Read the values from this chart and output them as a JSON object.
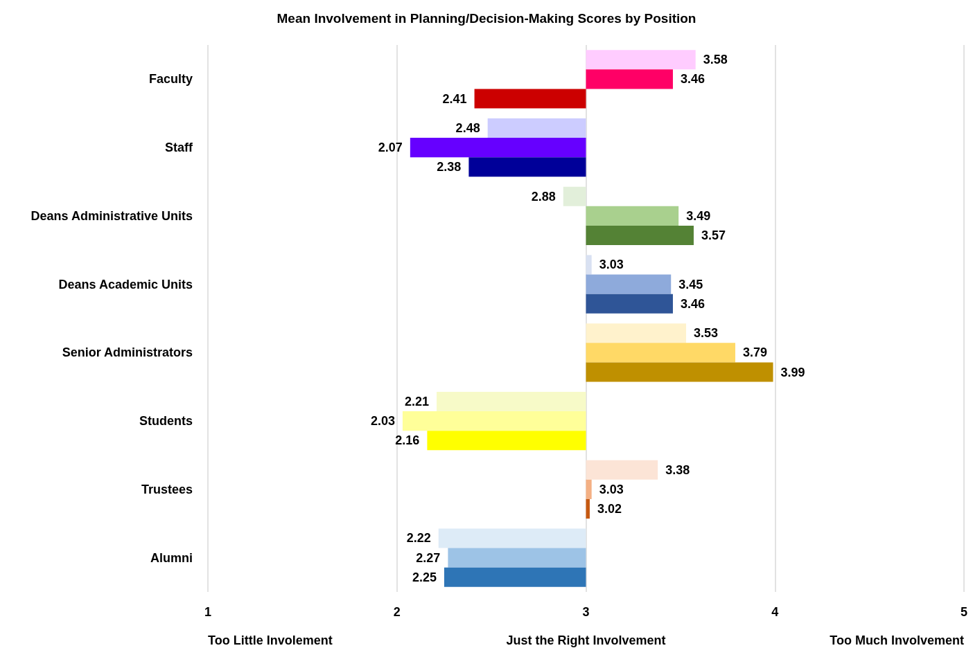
{
  "chart_data": {
    "type": "bar",
    "orientation": "horizontal",
    "title": "Mean Involvement in Planning/Decision-Making Scores by Position",
    "categories": [
      "Faculty",
      "Staff",
      "Deans Administrative Units",
      "Deans Academic Units",
      "Senior Administrators",
      "Students",
      "Trustees",
      "Alumni"
    ],
    "series": [
      {
        "values": [
          0.58,
          -0.52,
          -0.12,
          0.03,
          0.53,
          -0.79,
          0.38,
          -0.78
        ],
        "base": [
          3,
          3,
          3,
          3,
          3,
          3,
          3,
          3
        ],
        "colors": [
          "#ffccff",
          "#ccccff",
          "#e2efda",
          "#d9e1f2",
          "#fff2cc",
          "#f7fac8",
          "#fce4d6",
          "#ddebf7"
        ],
        "value_labels": [
          "3.58",
          "2.48",
          "2.88",
          "3.03",
          "3.53",
          "2.21",
          "3.38",
          "2.22"
        ]
      },
      {
        "values": [
          0.46,
          -0.93,
          0.49,
          0.45,
          0.79,
          -0.97,
          0.03,
          -0.73
        ],
        "base": [
          3,
          3,
          3,
          3,
          3,
          3,
          3,
          3
        ],
        "colors": [
          "#ff0066",
          "#6600ff",
          "#a9d08e",
          "#8eaadb",
          "#ffd966",
          "#ffff99",
          "#f4b084",
          "#9dc3e6"
        ],
        "value_labels": [
          "3.46",
          "2.07",
          "3.49",
          "3.45",
          "3.79",
          "2.03",
          "3.03",
          "2.27"
        ]
      },
      {
        "values": [
          -0.59,
          -0.62,
          0.57,
          0.46,
          0.99,
          -0.84,
          0.02,
          -0.75
        ],
        "base": [
          3,
          3,
          3,
          3,
          3,
          3,
          3,
          3
        ],
        "colors": [
          "#cc0000",
          "#000099",
          "#548235",
          "#2f5597",
          "#bf9000",
          "#ffff00",
          "#c65911",
          "#2e75b6"
        ],
        "value_labels": [
          "2.41",
          "2.38",
          "3.57",
          "3.46",
          "3.99",
          "2.16",
          "3.02",
          "2.25"
        ]
      }
    ],
    "xlim": [
      1,
      5
    ],
    "xticks": [
      1,
      2,
      3,
      4,
      5
    ],
    "grid": "x",
    "annotations": [
      "Too Little Involement",
      "Just the Right Involvement",
      "Too Much Involvement"
    ]
  }
}
